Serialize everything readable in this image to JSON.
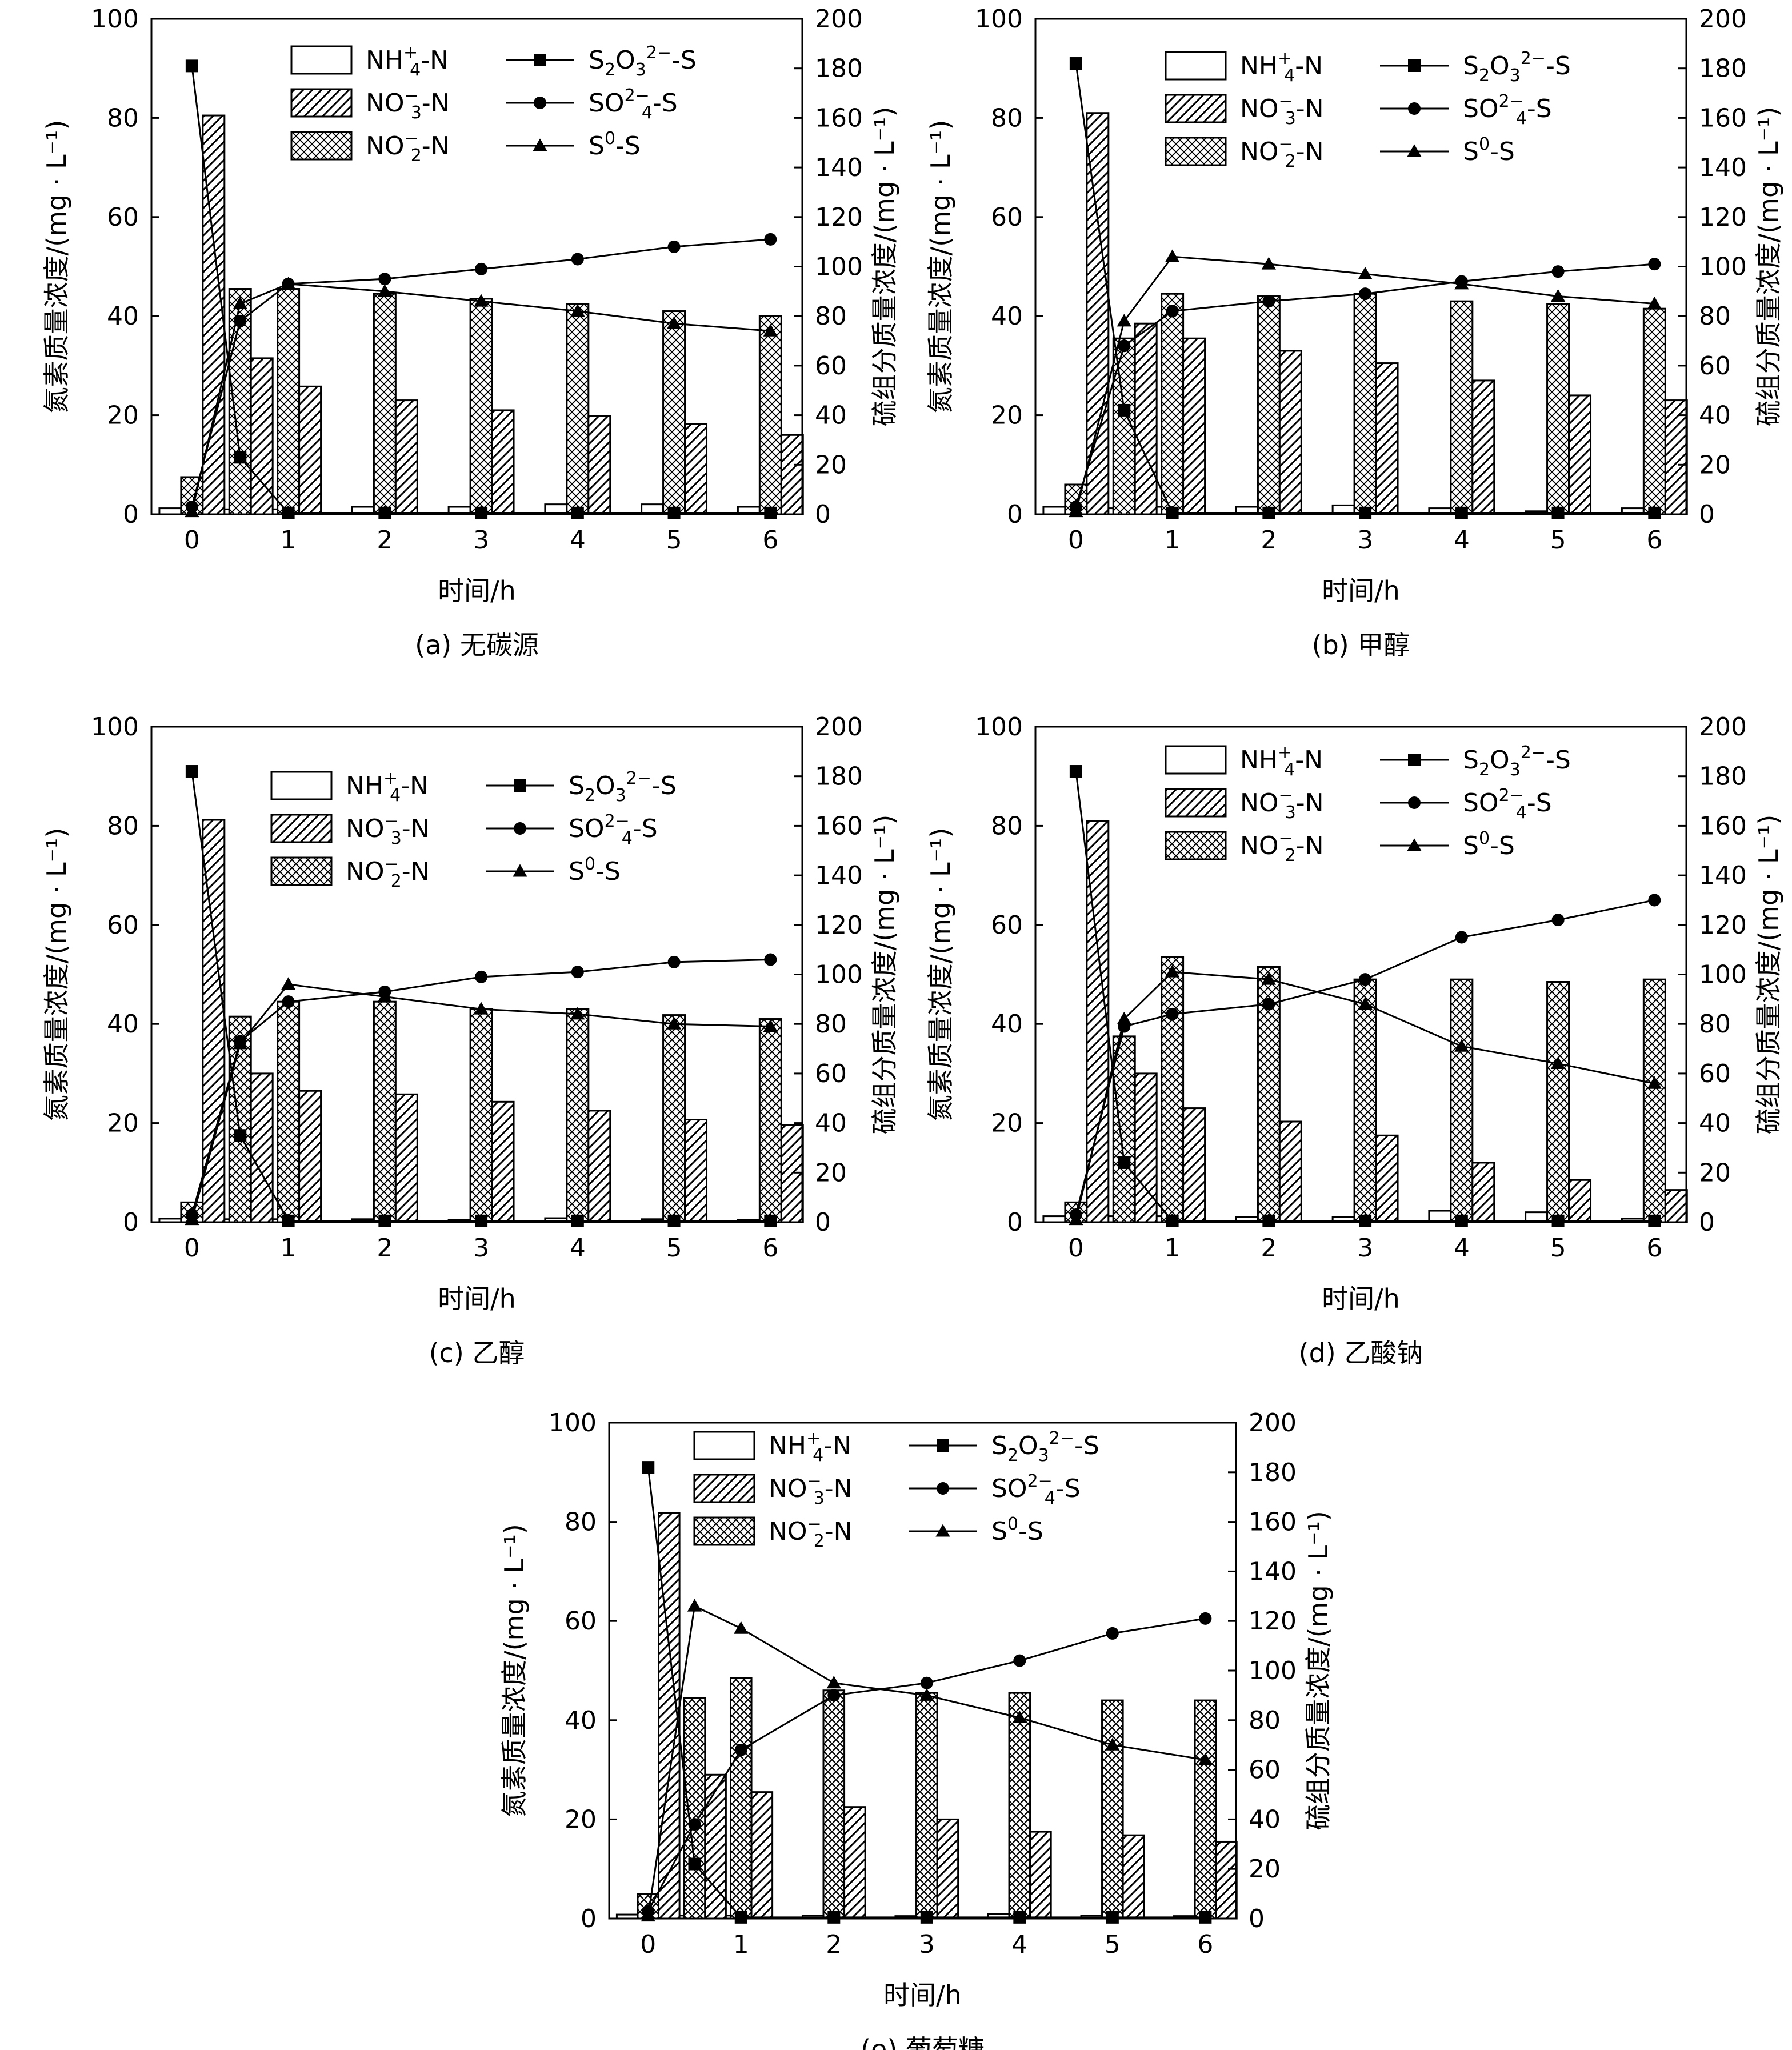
{
  "figure": {
    "x_ticks": [
      "0",
      "1",
      "2",
      "3",
      "4",
      "5",
      "6"
    ],
    "left_ticks": [
      "0",
      "20",
      "40",
      "60",
      "80",
      "100"
    ],
    "right_ticks": [
      "0",
      "20",
      "40",
      "60",
      "80",
      "100",
      "120",
      "140",
      "160",
      "180",
      "200"
    ],
    "xlabel": "时间/h",
    "ylabel_left": "氮素质量浓度/(mg · L⁻¹)",
    "ylabel_right": "硫组分质量浓度/(mg · L⁻¹)"
  },
  "legend": {
    "nh4": {
      "main": "NH",
      "sub": "4",
      "sup": "+",
      "rest": "-N"
    },
    "no3": {
      "main": "NO",
      "sub": "3",
      "sup": "−",
      "rest": "-N"
    },
    "no2": {
      "main": "NO",
      "sub": "2",
      "sup": "−",
      "rest": "-N"
    },
    "s2o3": {
      "main": "S",
      "sub1": "2",
      "mid": "O",
      "sub2": "3",
      "sup": "2−",
      "rest": "-S"
    },
    "so4": {
      "main": "SO",
      "sub": "4",
      "sup": "2−",
      "rest": "-S"
    },
    "s0": {
      "main": "S",
      "sup": "0",
      "rest": "-S"
    }
  },
  "chart_data": [
    {
      "type": "bar",
      "caption": "(a) 无碳源",
      "xlabel": "时间/h",
      "ylabel": "氮素质量浓度/(mg · L⁻¹)",
      "ylabel_right": "硫组分质量浓度/(mg · L⁻¹)",
      "x": [
        0,
        0.5,
        1,
        2,
        3,
        4,
        5,
        6
      ],
      "ylim": [
        0,
        100
      ],
      "y2lim": [
        0,
        200
      ],
      "bars": [
        {
          "name": "NH4+-N",
          "values": [
            1.2,
            1.0,
            1.0,
            1.5,
            1.5,
            2.0,
            2.0,
            1.5
          ]
        },
        {
          "name": "NO2--N",
          "values": [
            7.5,
            45.5,
            45.5,
            44.5,
            43.5,
            42.5,
            41.0,
            40.0
          ]
        },
        {
          "name": "NO3--N",
          "values": [
            80.5,
            31.5,
            25.8,
            23.0,
            21.0,
            19.8,
            18.2,
            16.0
          ]
        }
      ],
      "lines": [
        {
          "name": "S2O32--S",
          "values": [
            181,
            23,
            0.5,
            0.5,
            0.5,
            0.5,
            0.5,
            0.5
          ]
        },
        {
          "name": "SO42--S",
          "values": [
            3,
            78,
            93,
            95,
            99,
            103,
            108,
            111
          ]
        },
        {
          "name": "S0-S",
          "values": [
            1,
            85,
            93,
            90,
            86,
            82,
            77,
            74
          ]
        }
      ]
    },
    {
      "type": "bar",
      "caption": "(b) 甲醇",
      "xlabel": "时间/h",
      "ylabel": "氮素质量浓度/(mg · L⁻¹)",
      "ylabel_right": "硫组分质量浓度/(mg · L⁻¹)",
      "x": [
        0,
        0.5,
        1,
        2,
        3,
        4,
        5,
        6
      ],
      "ylim": [
        0,
        100
      ],
      "y2lim": [
        0,
        200
      ],
      "bars": [
        {
          "name": "NH4+-N",
          "values": [
            1.5,
            1.2,
            1.5,
            1.5,
            1.8,
            1.2,
            0.6,
            1.2
          ]
        },
        {
          "name": "NO2--N",
          "values": [
            6.0,
            35.5,
            44.5,
            44.0,
            44.5,
            43.0,
            42.5,
            41.5
          ]
        },
        {
          "name": "NO3--N",
          "values": [
            81.0,
            38.5,
            35.5,
            33.0,
            30.5,
            27.0,
            24.0,
            23.0
          ]
        }
      ],
      "lines": [
        {
          "name": "S2O32--S",
          "values": [
            182,
            42,
            0.5,
            0.5,
            0.5,
            0.5,
            0.5,
            0.5
          ]
        },
        {
          "name": "SO42--S",
          "values": [
            3,
            68,
            82,
            86,
            89,
            94,
            98,
            101
          ]
        },
        {
          "name": "S0-S",
          "values": [
            1,
            78,
            104,
            101,
            97,
            93,
            88,
            85
          ]
        }
      ]
    },
    {
      "type": "bar",
      "caption": "(c) 乙醇",
      "xlabel": "时间/h",
      "ylabel": "氮素质量浓度/(mg · L⁻¹)",
      "ylabel_right": "硫组分质量浓度/(mg · L⁻¹)",
      "x": [
        0,
        0.5,
        1,
        2,
        3,
        4,
        5,
        6
      ],
      "ylim": [
        0,
        100
      ],
      "y2lim": [
        0,
        200
      ],
      "bars": [
        {
          "name": "NH4+-N",
          "values": [
            0.7,
            0.6,
            0.6,
            0.6,
            0.5,
            0.8,
            0.6,
            0.5
          ]
        },
        {
          "name": "NO2--N",
          "values": [
            4.0,
            41.5,
            44.5,
            44.5,
            43.0,
            43.0,
            41.8,
            41.0
          ]
        },
        {
          "name": "NO3--N",
          "values": [
            81.2,
            30.0,
            26.5,
            25.8,
            24.3,
            22.5,
            20.7,
            19.6
          ]
        }
      ],
      "lines": [
        {
          "name": "S2O32--S",
          "values": [
            182,
            35,
            0.5,
            0.5,
            0.5,
            0.5,
            0.5,
            0.5
          ]
        },
        {
          "name": "SO42--S",
          "values": [
            3,
            73,
            89,
            93,
            99,
            101,
            105,
            106
          ]
        },
        {
          "name": "S0-S",
          "values": [
            1,
            72,
            96,
            91,
            86,
            84,
            80,
            79
          ]
        }
      ]
    },
    {
      "type": "bar",
      "caption": "(d) 乙酸钠",
      "xlabel": "时间/h",
      "ylabel": "氮素质量浓度/(mg · L⁻¹)",
      "ylabel_right": "硫组分质量浓度/(mg · L⁻¹)",
      "x": [
        0,
        0.5,
        1,
        2,
        3,
        4,
        5,
        6
      ],
      "ylim": [
        0,
        100
      ],
      "y2lim": [
        0,
        200
      ],
      "bars": [
        {
          "name": "NH4+-N",
          "values": [
            1.2,
            1.2,
            1.2,
            1.0,
            1.0,
            2.3,
            2.0,
            0.7
          ]
        },
        {
          "name": "NO2--N",
          "values": [
            4.0,
            37.5,
            53.5,
            51.5,
            49.0,
            49.0,
            48.5,
            49.0
          ]
        },
        {
          "name": "NO3--N",
          "values": [
            81.0,
            30.0,
            23.0,
            20.3,
            17.5,
            12.0,
            8.5,
            6.5
          ]
        }
      ],
      "lines": [
        {
          "name": "S2O32--S",
          "values": [
            182,
            24,
            0.5,
            0.5,
            0.5,
            0.5,
            0.5,
            0.5
          ]
        },
        {
          "name": "SO42--S",
          "values": [
            3,
            79,
            84,
            88,
            98,
            115,
            122,
            130
          ]
        },
        {
          "name": "S0-S",
          "values": [
            1,
            82,
            101,
            98,
            88,
            71,
            64,
            56
          ]
        }
      ]
    },
    {
      "type": "bar",
      "caption": "(e) 葡萄糖",
      "xlabel": "时间/h",
      "ylabel": "氮素质量浓度/(mg · L⁻¹)",
      "ylabel_right": "硫组分质量浓度/(mg · L⁻¹)",
      "x": [
        0,
        0.5,
        1,
        2,
        3,
        4,
        5,
        6
      ],
      "ylim": [
        0,
        100
      ],
      "y2lim": [
        0,
        200
      ],
      "bars": [
        {
          "name": "NH4+-N",
          "values": [
            0.8,
            0.6,
            0.6,
            0.6,
            0.5,
            0.9,
            0.6,
            0.5
          ]
        },
        {
          "name": "NO2--N",
          "values": [
            5.0,
            44.5,
            48.5,
            46.0,
            45.5,
            45.5,
            44.0,
            44.0
          ]
        },
        {
          "name": "NO3--N",
          "values": [
            81.8,
            29.0,
            25.5,
            22.5,
            20.0,
            17.5,
            16.8,
            15.5
          ]
        }
      ],
      "lines": [
        {
          "name": "S2O32--S",
          "values": [
            182,
            22,
            0.5,
            0.5,
            0.5,
            0.5,
            0.5,
            0.5
          ]
        },
        {
          "name": "SO42--S",
          "values": [
            3,
            38,
            68,
            90,
            95,
            104,
            115,
            121
          ]
        },
        {
          "name": "S0-S",
          "values": [
            1,
            126,
            117,
            95,
            90,
            81,
            70,
            64
          ]
        }
      ]
    }
  ]
}
